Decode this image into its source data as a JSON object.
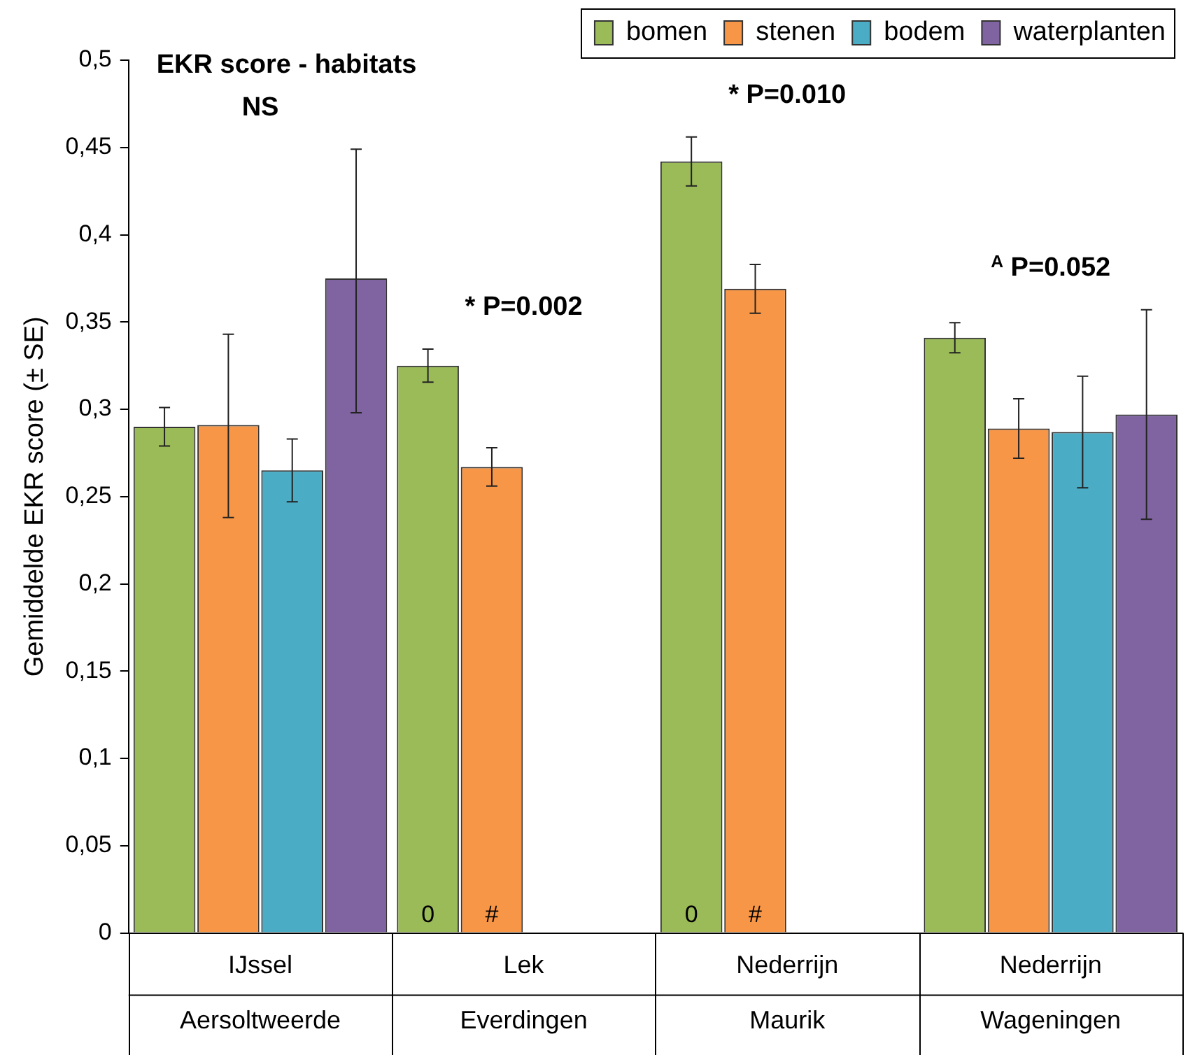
{
  "chart_data": {
    "type": "bar",
    "title": "EKR score - habitats",
    "ylabel": "Gemiddelde EKR score (± SE)",
    "categories": [
      "IJssel\nAersoltweerde",
      "Lek\nEverdingen",
      "Nederrijn\nMaurik",
      "Nederrijn\nWageningen"
    ],
    "series": [
      {
        "name": "bomen",
        "color": "#9bbb59",
        "values": [
          0.29,
          0.325,
          0.442,
          0.341
        ],
        "errors": [
          0.011,
          0.0095,
          0.014,
          0.0086
        ],
        "value_labels": [
          null,
          "0",
          "0",
          null
        ]
      },
      {
        "name": "stenen",
        "color": "#f79646",
        "values": [
          0.291,
          0.267,
          0.369,
          0.289
        ],
        "errors": [
          [
            0.238,
            0.343
          ],
          0.011,
          0.014,
          0.017
        ],
        "value_labels": [
          null,
          "#",
          "#",
          null
        ]
      },
      {
        "name": "bodem",
        "color": "#4bacc6",
        "values": [
          0.265,
          null,
          null,
          0.287
        ],
        "errors": [
          0.018,
          null,
          null,
          0.032
        ]
      },
      {
        "name": "waterplanten",
        "color": "#8064a2",
        "values": [
          0.375,
          null,
          null,
          0.297
        ],
        "errors": [
          [
            0.298,
            0.449
          ],
          null,
          null,
          0.06
        ]
      }
    ],
    "ylim": [
      0,
      0.5
    ],
    "yticks": [
      0,
      {
        "value": 0.05,
        "label": "0,05"
      },
      {
        "value": 0.1,
        "label": "0,1"
      },
      {
        "value": 0.15,
        "label": "0,15"
      },
      {
        "value": 0.2,
        "label": "0,2"
      },
      {
        "value": 0.25,
        "label": "0,25"
      },
      {
        "value": 0.3,
        "label": "0,3"
      },
      {
        "value": 0.35,
        "label": "0,35"
      },
      {
        "value": 0.4,
        "label": "0,4"
      },
      {
        "value": 0.45,
        "label": "0,45"
      },
      {
        "value": 0.5,
        "label": "0,5"
      }
    ],
    "annotations": [
      "NS",
      "* P=0.002",
      "* P=0.010",
      "$^{A}$ P=0.052"
    ],
    "grid": false,
    "legend": "top right"
  }
}
